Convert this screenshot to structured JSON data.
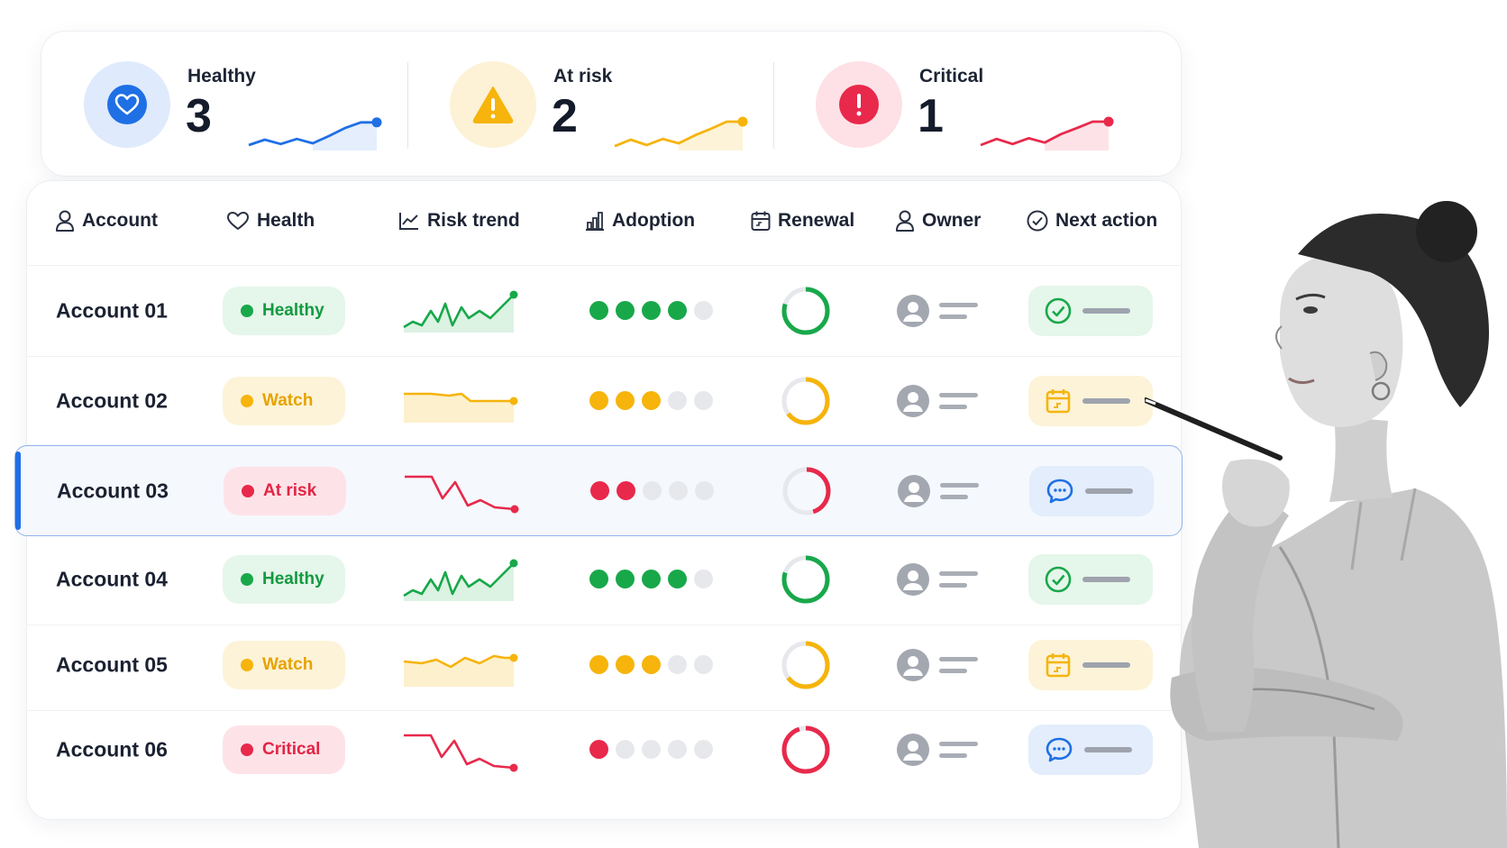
{
  "summary": [
    {
      "key": "healthy",
      "label": "Healthy",
      "value": "3",
      "icon": "heart-icon",
      "color": "#1f6fe5",
      "bg": "#dfeafc",
      "fill": "#e4eefc",
      "spark": [
        0.15,
        0.3,
        0.18,
        0.32,
        0.2,
        0.4,
        0.62,
        0.78,
        0.78
      ]
    },
    {
      "key": "at_risk",
      "label": "At risk",
      "value": "2",
      "icon": "warning-icon",
      "color": "#f6b40c",
      "bg": "#fdf2d6",
      "fill": "#fdf3d8",
      "spark": [
        0.12,
        0.3,
        0.15,
        0.32,
        0.2,
        0.42,
        0.6,
        0.8,
        0.8
      ]
    },
    {
      "key": "critical",
      "label": "Critical",
      "value": "1",
      "icon": "alert-icon",
      "color": "#e8294b",
      "bg": "#fde1e6",
      "fill": "#fde3e8",
      "spark": [
        0.15,
        0.32,
        0.18,
        0.34,
        0.22,
        0.45,
        0.62,
        0.8,
        0.8
      ]
    }
  ],
  "table": {
    "columns": [
      {
        "key": "account",
        "label": "Account",
        "icon": "user-icon"
      },
      {
        "key": "health",
        "label": "Health",
        "icon": "heart-outline-icon"
      },
      {
        "key": "risk_trend",
        "label": "Risk trend",
        "icon": "trend-icon"
      },
      {
        "key": "adoption",
        "label": "Adoption",
        "icon": "bar-chart-icon"
      },
      {
        "key": "renewal",
        "label": "Renewal",
        "icon": "calendar-icon"
      },
      {
        "key": "owner",
        "label": "Owner",
        "icon": "user-icon"
      },
      {
        "key": "next_action",
        "label": "Next action",
        "icon": "check-circle-icon"
      }
    ],
    "rows": [
      {
        "account": "Account 01",
        "status": "Healthy",
        "tone": "green",
        "adoption": 4,
        "renewal": 0.8,
        "action": "check-circle-icon",
        "selected": false
      },
      {
        "account": "Account 02",
        "status": "Watch",
        "tone": "yellow",
        "adoption": 3,
        "renewal": 0.65,
        "action": "calendar-icon",
        "selected": false
      },
      {
        "account": "Account 03",
        "status": "At risk",
        "tone": "red",
        "adoption": 2,
        "renewal": 0.45,
        "action": "chat-icon",
        "selected": true
      },
      {
        "account": "Account 04",
        "status": "Healthy",
        "tone": "green",
        "adoption": 4,
        "renewal": 0.8,
        "action": "check-circle-icon",
        "selected": false
      },
      {
        "account": "Account 05",
        "status": "Watch",
        "tone": "yellow",
        "adoption": 3,
        "renewal": 0.65,
        "action": "calendar-icon",
        "selected": false
      },
      {
        "account": "Account 06",
        "status": "Critical",
        "tone": "red",
        "adoption": 1,
        "renewal": 0.95,
        "action": "chat-icon",
        "selected": false
      }
    ]
  },
  "tones": {
    "green": {
      "main": "#18a84a",
      "soft": "#e5f6ea",
      "text": "#139a40",
      "area": "#dcf2e3"
    },
    "yellow": {
      "main": "#f6b40c",
      "soft": "#fdf3d8",
      "text": "#e6a300",
      "area": "#fdf0cc"
    },
    "red": {
      "main": "#e8294b",
      "soft": "#fde3e8",
      "text": "#e32445",
      "area": "#fde3e8"
    },
    "blue": {
      "main": "#1f6fe5",
      "soft": "#e3edfb"
    }
  }
}
